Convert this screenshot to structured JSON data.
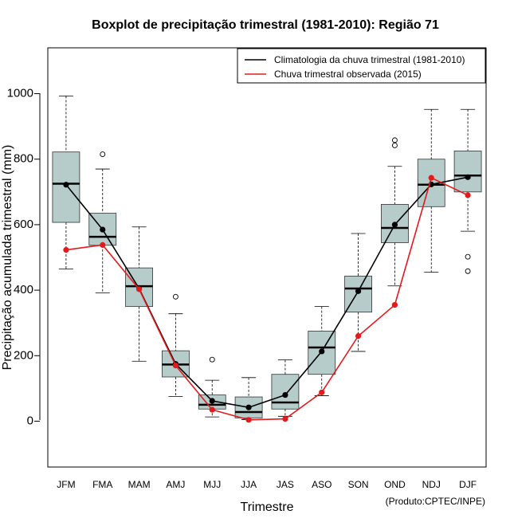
{
  "chart_data": {
    "type": "boxplot",
    "title": "Boxplot de precipitação trimestral (1981-2010): Região 71",
    "xlabel": "Trimestre",
    "ylabel": "Precipitação acumulada trimestral (mm)",
    "ylim": [
      -140,
      1140
    ],
    "yticks": [
      0,
      200,
      400,
      600,
      800,
      1000
    ],
    "credit": "(Produto:CPTEC/INPE)",
    "legend": {
      "position": "top-right",
      "entries": [
        {
          "label": "Climatologia da chuva trimestral (1981-2010)",
          "color": "#000000"
        },
        {
          "label": "Chuva trimestral observada (2015)",
          "color": "#e31a1c"
        }
      ]
    },
    "categories": [
      "JFM",
      "FMA",
      "MAM",
      "AMJ",
      "MJJ",
      "JJA",
      "JAS",
      "ASO",
      "SON",
      "OND",
      "NDJ",
      "DJF"
    ],
    "boxes": [
      {
        "whisker_low": 465,
        "q1": 607,
        "median": 725,
        "q3": 822,
        "whisker_high": 993,
        "outliers": []
      },
      {
        "whisker_low": 392,
        "q1": 537,
        "median": 563,
        "q3": 635,
        "whisker_high": 770,
        "outliers": [
          815
        ]
      },
      {
        "whisker_low": 183,
        "q1": 350,
        "median": 412,
        "q3": 468,
        "whisker_high": 593,
        "outliers": []
      },
      {
        "whisker_low": 75,
        "q1": 135,
        "median": 173,
        "q3": 215,
        "whisker_high": 328,
        "outliers": [
          380
        ]
      },
      {
        "whisker_low": 13,
        "q1": 37,
        "median": 50,
        "q3": 80,
        "whisker_high": 125,
        "outliers": [
          188
        ]
      },
      {
        "whisker_low": 5,
        "q1": 10,
        "median": 28,
        "q3": 74,
        "whisker_high": 133,
        "outliers": []
      },
      {
        "whisker_low": 15,
        "q1": 37,
        "median": 57,
        "q3": 143,
        "whisker_high": 187,
        "outliers": []
      },
      {
        "whisker_low": 78,
        "q1": 143,
        "median": 225,
        "q3": 275,
        "whisker_high": 350,
        "outliers": []
      },
      {
        "whisker_low": 213,
        "q1": 333,
        "median": 405,
        "q3": 443,
        "whisker_high": 573,
        "outliers": []
      },
      {
        "whisker_low": 413,
        "q1": 545,
        "median": 590,
        "q3": 662,
        "whisker_high": 778,
        "outliers": [
          842,
          858
        ]
      },
      {
        "whisker_low": 455,
        "q1": 655,
        "median": 722,
        "q3": 800,
        "whisker_high": 952,
        "outliers": []
      },
      {
        "whisker_low": 580,
        "q1": 700,
        "median": 750,
        "q3": 825,
        "whisker_high": 952,
        "outliers": [
          502,
          458
        ]
      }
    ],
    "series": [
      {
        "name": "Climatologia da chuva trimestral (1981-2010)",
        "color": "#000000",
        "values": [
          722,
          585,
          405,
          175,
          62,
          42,
          80,
          213,
          397,
          600,
          723,
          745
        ]
      },
      {
        "name": "Chuva trimestral observada (2015)",
        "color": "#e31a1c",
        "values": [
          523,
          538,
          403,
          170,
          35,
          4,
          7,
          88,
          260,
          355,
          743,
          690
        ]
      }
    ]
  }
}
